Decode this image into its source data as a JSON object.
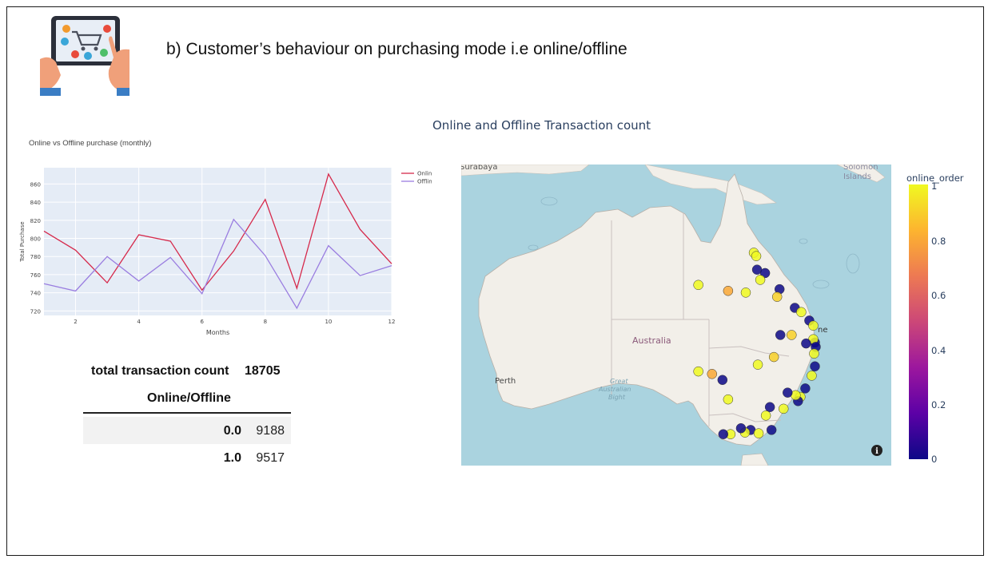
{
  "slide": {
    "title": "b) Customer’s behaviour on purchasing mode i.e online/offline"
  },
  "colors": {
    "online": "#d6294b",
    "offline": "#9a7de0",
    "plot_bg": "#e5ecf6",
    "ocean": "#aad3df",
    "land": "#f2efe9",
    "scale_low": "#0d0887",
    "scale_high": "#f0f921"
  },
  "line_chart": {
    "title": "Online vs Offline purchase (monthly)"
  },
  "summary": {
    "total_label": "total transaction count",
    "total_value": "18705",
    "column_label": "Online/Offline",
    "rows": [
      {
        "key": "0.0",
        "value": "9188"
      },
      {
        "key": "1.0",
        "value": "9517"
      }
    ]
  },
  "map": {
    "title": "Online and Offline Transaction count",
    "labels": {
      "surabaya": "Surabaya",
      "solomon": "Solomon",
      "islands": "Islands",
      "australia": "Australia",
      "perth": "Perth",
      "bight1": "Great",
      "bight2": "Australian",
      "bight3": "Bight",
      "brisbane_frag": "ne",
      "info_icon": "i"
    },
    "colorbar": {
      "title": "online_order",
      "ticks": [
        "1",
        "0.8",
        "0.6",
        "0.4",
        "0.2",
        "0"
      ]
    }
  },
  "chart_data": [
    {
      "type": "line",
      "title": "Online vs Offline purchase (monthly)",
      "xlabel": "Months",
      "ylabel": "Total Purchase",
      "x": [
        1,
        2,
        3,
        4,
        5,
        6,
        7,
        8,
        9,
        10,
        11,
        12
      ],
      "series": [
        {
          "name": "Online",
          "values": [
            808,
            787,
            751,
            804,
            797,
            743,
            786,
            843,
            745,
            871,
            810,
            772
          ]
        },
        {
          "name": "Offline",
          "values": [
            750,
            742,
            780,
            753,
            779,
            739,
            821,
            781,
            723,
            792,
            759,
            770
          ]
        }
      ],
      "xlim": [
        1,
        12
      ],
      "ylim": [
        715,
        878
      ],
      "x_ticks": [
        2,
        4,
        6,
        8,
        10,
        12
      ],
      "y_ticks": [
        720,
        740,
        760,
        780,
        800,
        820,
        840,
        860
      ],
      "legend_position": "top-right",
      "grid": true
    },
    {
      "type": "scatter",
      "title": "Online and Offline Transaction count",
      "colorbar_title": "online_order",
      "color_range": [
        0,
        1
      ],
      "note_points": "customer locations (longitude, latitude), color = online_order",
      "points": [
        {
          "lon": 145.4,
          "lat": -16.9,
          "c": 1
        },
        {
          "lon": 145.7,
          "lat": -17.3,
          "c": 1
        },
        {
          "lon": 145.8,
          "lat": -18.9,
          "c": 0
        },
        {
          "lon": 146.8,
          "lat": -19.3,
          "c": 0
        },
        {
          "lon": 146.2,
          "lat": -20.1,
          "c": 1
        },
        {
          "lon": 138.5,
          "lat": -20.7,
          "c": 1
        },
        {
          "lon": 142.2,
          "lat": -21.4,
          "c": 0.8
        },
        {
          "lon": 144.4,
          "lat": -21.6,
          "c": 1
        },
        {
          "lon": 148.6,
          "lat": -21.2,
          "c": 0
        },
        {
          "lon": 148.3,
          "lat": -22.1,
          "c": 0.9
        },
        {
          "lon": 150.5,
          "lat": -23.4,
          "c": 0
        },
        {
          "lon": 151.3,
          "lat": -23.9,
          "c": 1
        },
        {
          "lon": 152.3,
          "lat": -24.9,
          "c": 0
        },
        {
          "lon": 152.8,
          "lat": -25.5,
          "c": 1
        },
        {
          "lon": 153.0,
          "lat": -27.5,
          "c": 0
        },
        {
          "lon": 152.8,
          "lat": -27.1,
          "c": 1
        },
        {
          "lon": 153.1,
          "lat": -28.0,
          "c": 0
        },
        {
          "lon": 152.9,
          "lat": -28.8,
          "c": 1
        },
        {
          "lon": 151.9,
          "lat": -27.6,
          "c": 0
        },
        {
          "lon": 150.1,
          "lat": -26.6,
          "c": 0.9
        },
        {
          "lon": 148.7,
          "lat": -26.6,
          "c": 0
        },
        {
          "lon": 153.0,
          "lat": -30.3,
          "c": 0
        },
        {
          "lon": 152.6,
          "lat": -31.4,
          "c": 1
        },
        {
          "lon": 151.8,
          "lat": -32.9,
          "c": 0
        },
        {
          "lon": 151.2,
          "lat": -33.9,
          "c": 1
        },
        {
          "lon": 150.9,
          "lat": -34.4,
          "c": 0
        },
        {
          "lon": 150.6,
          "lat": -33.7,
          "c": 1
        },
        {
          "lon": 149.6,
          "lat": -33.4,
          "c": 0
        },
        {
          "lon": 149.1,
          "lat": -35.3,
          "c": 1
        },
        {
          "lon": 147.4,
          "lat": -35.1,
          "c": 0
        },
        {
          "lon": 146.9,
          "lat": -36.1,
          "c": 1
        },
        {
          "lon": 145.0,
          "lat": -37.8,
          "c": 0
        },
        {
          "lon": 144.3,
          "lat": -38.1,
          "c": 1
        },
        {
          "lon": 143.8,
          "lat": -37.6,
          "c": 0
        },
        {
          "lon": 142.5,
          "lat": -38.3,
          "c": 1
        },
        {
          "lon": 141.6,
          "lat": -38.3,
          "c": 0
        },
        {
          "lon": 146.0,
          "lat": -38.2,
          "c": 1
        },
        {
          "lon": 147.6,
          "lat": -37.8,
          "c": 0
        },
        {
          "lon": 142.2,
          "lat": -34.2,
          "c": 1
        },
        {
          "lon": 141.5,
          "lat": -31.9,
          "c": 0
        },
        {
          "lon": 145.9,
          "lat": -30.1,
          "c": 1
        },
        {
          "lon": 147.9,
          "lat": -29.2,
          "c": 0.9
        },
        {
          "lon": 138.5,
          "lat": -30.9,
          "c": 1
        },
        {
          "lon": 140.2,
          "lat": -31.2,
          "c": 0.8
        }
      ]
    }
  ]
}
